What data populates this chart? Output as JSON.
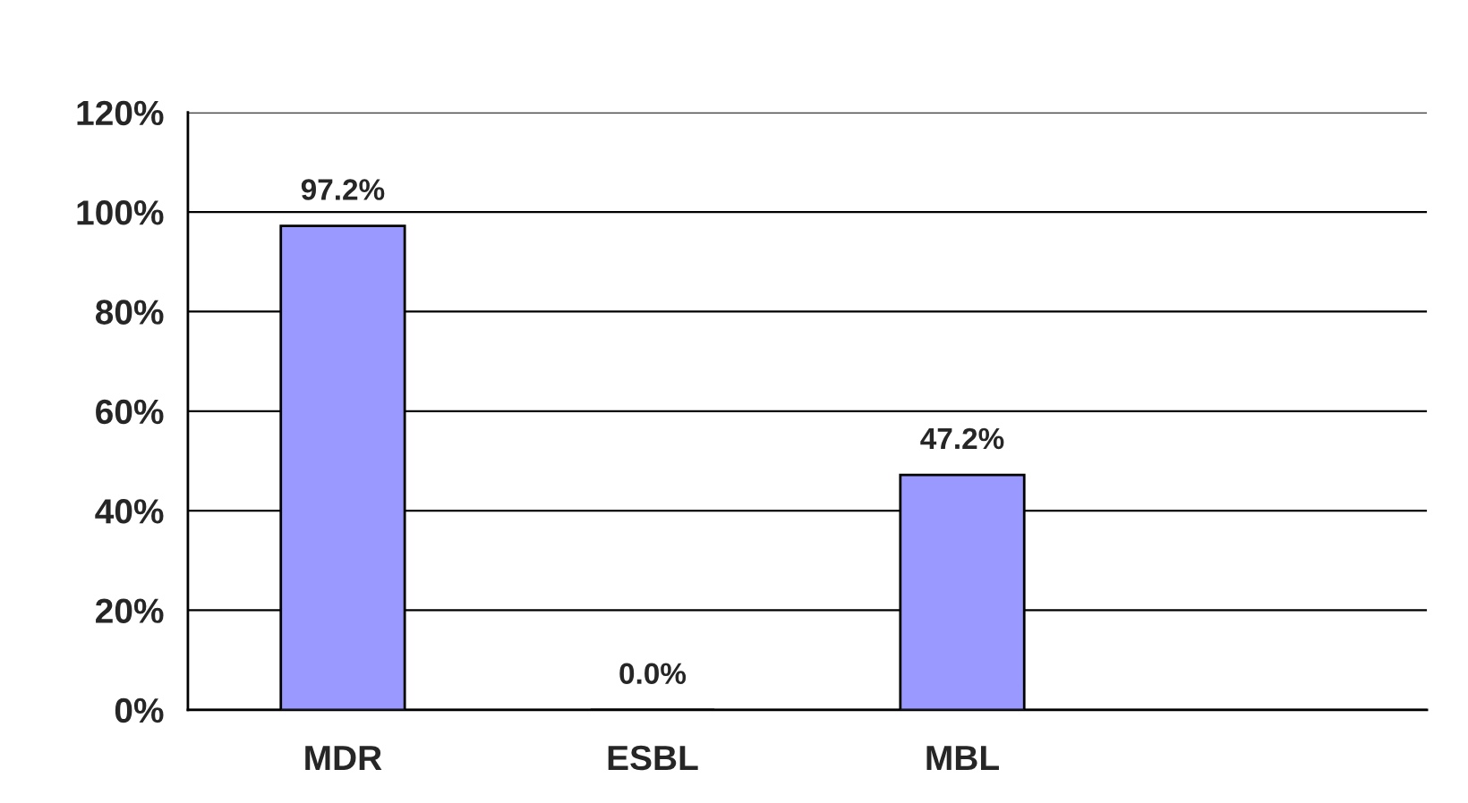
{
  "chart_data": {
    "type": "bar",
    "categories": [
      "MDR",
      "ESBL",
      "MBL",
      null
    ],
    "values": [
      97.2,
      0.0,
      47.2,
      null
    ],
    "value_labels": [
      "97.2%",
      "0.0%",
      "47.2%",
      null
    ],
    "color": "#9999ff",
    "ylim": [
      0,
      120
    ],
    "yticks": [
      {
        "value": 0,
        "label": "0%"
      },
      {
        "value": 20,
        "label": "20%"
      },
      {
        "value": 40,
        "label": "40%"
      },
      {
        "value": 60,
        "label": "60%"
      },
      {
        "value": 80,
        "label": "80%"
      },
      {
        "value": 100,
        "label": "100%"
      },
      {
        "value": 120,
        "label": "120%"
      }
    ],
    "grid": "y",
    "legend": false
  }
}
